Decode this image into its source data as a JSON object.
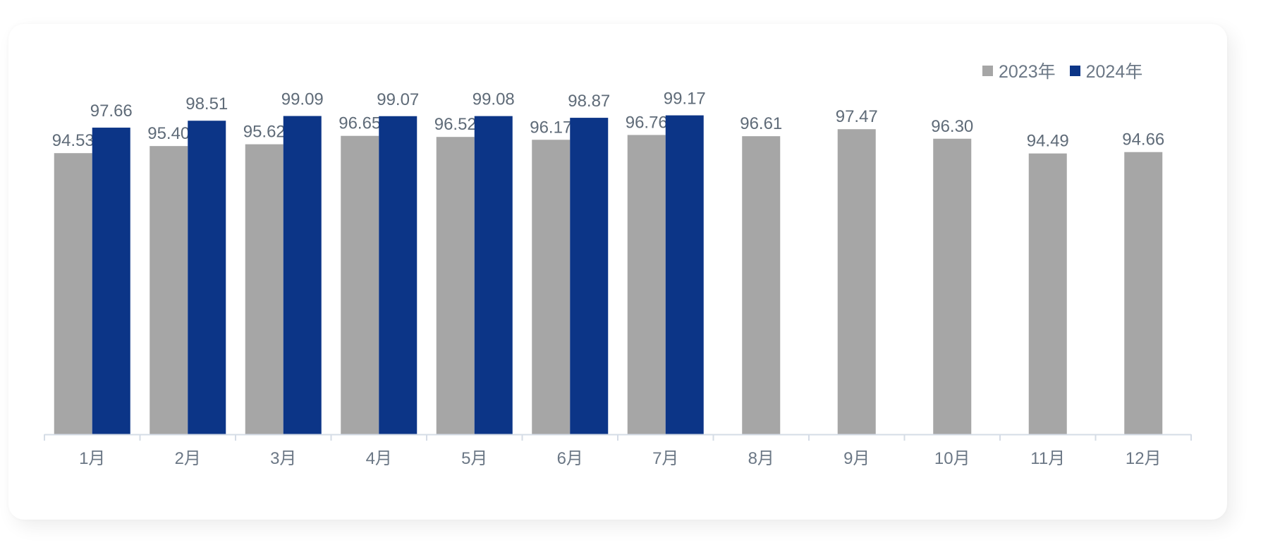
{
  "chart_data": {
    "type": "bar",
    "categories": [
      "1月",
      "2月",
      "3月",
      "4月",
      "5月",
      "6月",
      "7月",
      "8月",
      "9月",
      "10月",
      "11月",
      "12月"
    ],
    "series": [
      {
        "name": "2023年",
        "color": "#a6a6a6",
        "values": [
          94.53,
          95.4,
          95.62,
          96.65,
          96.52,
          96.17,
          96.76,
          96.61,
          97.47,
          96.3,
          94.49,
          94.66
        ]
      },
      {
        "name": "2024年",
        "color": "#0c3587",
        "values": [
          97.66,
          98.51,
          99.09,
          99.07,
          99.08,
          98.87,
          99.17,
          null,
          null,
          null,
          null,
          null
        ]
      }
    ],
    "value_format": "2-decimal",
    "ylim": [
      60,
      101.56
    ],
    "y_axis_visible": false,
    "grid": false,
    "legend": "top-right",
    "data_labels": true,
    "colors": {
      "axis": "#d5dce6",
      "label_text": "#6b7785",
      "data_label_text": "#5f6b78"
    }
  }
}
